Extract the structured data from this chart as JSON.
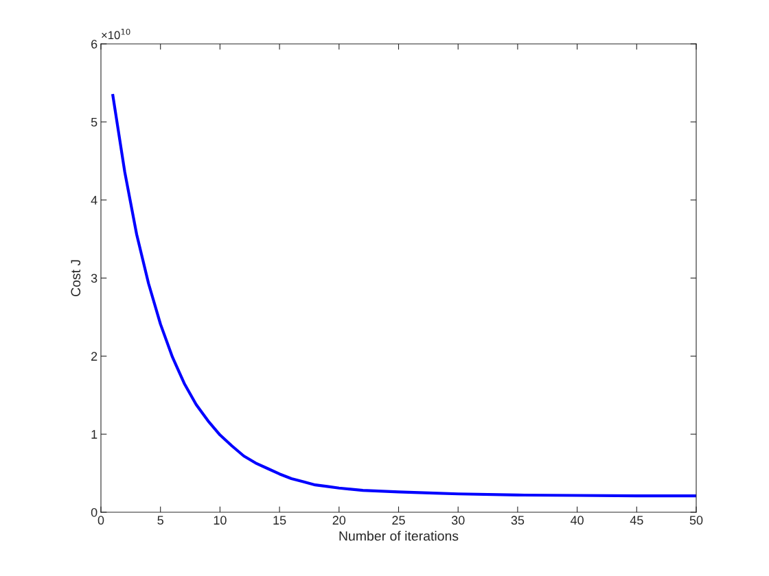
{
  "chart_data": {
    "type": "line",
    "xlabel": "Number of iterations",
    "ylabel": "Cost J",
    "annotations": [
      "×10$^{10}$"
    ],
    "series": [
      {
        "color": "#0000ff",
        "x": [
          1,
          2,
          3,
          4,
          5,
          6,
          7,
          8,
          9,
          10,
          11,
          12,
          13,
          14,
          15,
          16,
          17,
          18,
          19,
          20,
          22,
          25,
          28,
          30,
          35,
          40,
          45,
          50
        ],
        "values": [
          5.34,
          4.36,
          3.56,
          2.93,
          2.41,
          1.99,
          1.65,
          1.38,
          1.17,
          0.99,
          0.85,
          0.72,
          0.63,
          0.56,
          0.49,
          0.43,
          0.39,
          0.35,
          0.33,
          0.31,
          0.28,
          0.26,
          0.245,
          0.235,
          0.22,
          0.215,
          0.21,
          0.21
        ]
      }
    ],
    "xlim": [
      0,
      50
    ],
    "xticks": [
      0,
      5,
      10,
      15,
      20,
      25,
      30,
      35,
      40,
      45,
      50
    ],
    "ylim": [
      0,
      6
    ],
    "yticks": [
      0,
      1,
      2,
      3,
      4,
      5,
      6
    ],
    "grid": false,
    "legend": false,
    "marker": "none",
    "line_style": "solid"
  }
}
